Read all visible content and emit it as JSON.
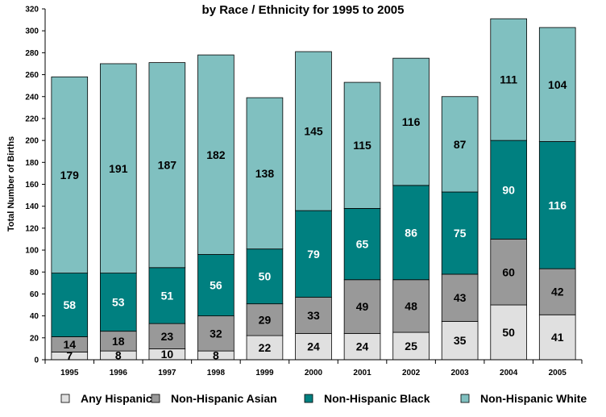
{
  "chart_data": {
    "type": "bar",
    "stacked": true,
    "title": "by Race / Ethnicity for 1995 to 2005",
    "xlabel": "",
    "ylabel": "Total Number of Births",
    "ylim": [
      0,
      320
    ],
    "y_ticks": [
      0,
      20,
      40,
      60,
      80,
      100,
      120,
      140,
      160,
      180,
      200,
      220,
      240,
      260,
      280,
      300,
      320
    ],
    "grid": false,
    "legend_position": "bottom",
    "categories": [
      "1995",
      "1996",
      "1997",
      "1998",
      "1999",
      "2000",
      "2001",
      "2002",
      "2003",
      "2004",
      "2005"
    ],
    "series": [
      {
        "name": "Any Hispanic",
        "color": "#e0e0e0",
        "label_color": "#000000",
        "values": [
          7,
          8,
          10,
          8,
          22,
          24,
          24,
          25,
          35,
          50,
          41
        ]
      },
      {
        "name": "Non-Hispanic Asian",
        "color": "#999999",
        "label_color": "#000000",
        "values": [
          14,
          18,
          23,
          32,
          29,
          33,
          49,
          48,
          43,
          60,
          42
        ]
      },
      {
        "name": "Non-Hispanic Black",
        "color": "#008080",
        "label_color": "#ffffff",
        "values": [
          58,
          53,
          51,
          56,
          50,
          79,
          65,
          86,
          75,
          90,
          116
        ]
      },
      {
        "name": "Non-Hispanic White",
        "color": "#80c0c0",
        "label_color": "#000000",
        "values": [
          179,
          191,
          187,
          182,
          138,
          145,
          115,
          116,
          87,
          111,
          104
        ]
      }
    ]
  }
}
